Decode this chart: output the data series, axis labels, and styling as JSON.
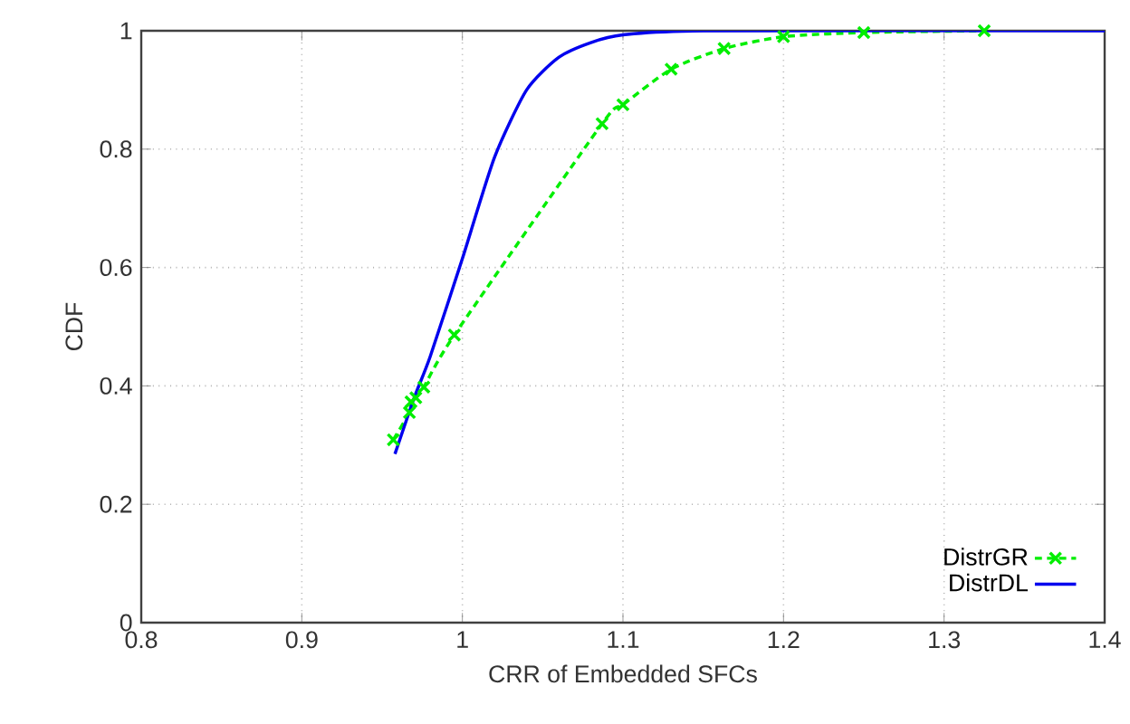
{
  "chart_data": {
    "type": "line",
    "xlabel": "CRR of Embedded SFCs",
    "ylabel": "CDF",
    "xlim": [
      0.8,
      1.4
    ],
    "ylim": [
      0,
      1
    ],
    "xticks": [
      0.8,
      0.9,
      1,
      1.1,
      1.2,
      1.3,
      1.4
    ],
    "yticks": [
      0,
      0.2,
      0.4,
      0.6,
      0.8,
      1
    ],
    "grid": true,
    "legend": "bottom right",
    "series": [
      {
        "name": "DistrGR",
        "color": "#00ee00",
        "line_style": "dashed",
        "marker": "cross",
        "x": [
          0.957,
          0.967,
          0.968,
          0.971,
          0.976,
          0.995,
          1.087,
          1.1,
          1.13,
          1.163,
          1.2,
          1.25,
          1.325
        ],
        "values": [
          0.309,
          0.355,
          0.373,
          0.38,
          0.398,
          0.486,
          0.843,
          0.875,
          0.935,
          0.97,
          0.99,
          0.997,
          1.0
        ]
      },
      {
        "name": "DistrDL",
        "color": "#0000ee",
        "line_style": "solid",
        "marker": "none",
        "x": [
          0.958,
          0.97,
          0.98,
          1.0,
          1.02,
          1.04,
          1.06,
          1.08,
          1.1,
          1.15,
          1.4
        ],
        "values": [
          0.285,
          0.38,
          0.45,
          0.615,
          0.786,
          0.9,
          0.955,
          0.98,
          0.993,
          1.0,
          1.0
        ]
      }
    ]
  }
}
